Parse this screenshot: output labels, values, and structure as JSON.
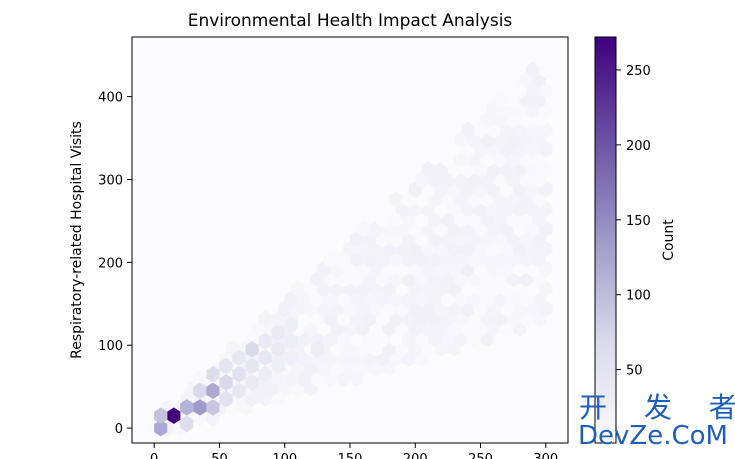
{
  "chart_data": {
    "type": "heatmap",
    "subtype": "hexbin",
    "title": "Environmental Health Impact Analysis",
    "xlabel": "",
    "ylabel": "Respiratory-related Hospital Visits",
    "colorbar_label": "Count",
    "colormap": "Purples",
    "xlim": [
      -17,
      317
    ],
    "ylim": [
      -18,
      472
    ],
    "xticks": [
      0,
      50,
      100,
      150,
      200,
      250,
      300
    ],
    "yticks": [
      0,
      100,
      200,
      300,
      400
    ],
    "colorbar_range": [
      1,
      272
    ],
    "colorbar_ticks": [
      50,
      100,
      150,
      200,
      250
    ],
    "max_count": 272,
    "hexbins": [
      {
        "x": 15,
        "y": 15,
        "count": 272
      },
      {
        "x": 5,
        "y": 0,
        "count": 120
      },
      {
        "x": 5,
        "y": 15,
        "count": 95
      },
      {
        "x": 25,
        "y": 25,
        "count": 110
      },
      {
        "x": 25,
        "y": 5,
        "count": 60
      },
      {
        "x": 35,
        "y": 25,
        "count": 135
      },
      {
        "x": 35,
        "y": 45,
        "count": 70
      },
      {
        "x": 45,
        "y": 45,
        "count": 120
      },
      {
        "x": 45,
        "y": 25,
        "count": 90
      },
      {
        "x": 45,
        "y": 65,
        "count": 60
      },
      {
        "x": 55,
        "y": 55,
        "count": 70
      },
      {
        "x": 55,
        "y": 35,
        "count": 55
      },
      {
        "x": 55,
        "y": 75,
        "count": 45
      },
      {
        "x": 65,
        "y": 65,
        "count": 55
      },
      {
        "x": 65,
        "y": 85,
        "count": 40
      },
      {
        "x": 65,
        "y": 45,
        "count": 40
      },
      {
        "x": 75,
        "y": 95,
        "count": 70
      },
      {
        "x": 75,
        "y": 75,
        "count": 45
      },
      {
        "x": 75,
        "y": 55,
        "count": 35
      },
      {
        "x": 85,
        "y": 85,
        "count": 40
      },
      {
        "x": 85,
        "y": 105,
        "count": 35
      },
      {
        "x": 85,
        "y": 65,
        "count": 30
      },
      {
        "x": 95,
        "y": 115,
        "count": 35
      },
      {
        "x": 95,
        "y": 95,
        "count": 35
      },
      {
        "x": 95,
        "y": 75,
        "count": 28
      },
      {
        "x": 105,
        "y": 105,
        "count": 30
      },
      {
        "x": 105,
        "y": 125,
        "count": 28
      },
      {
        "x": 105,
        "y": 85,
        "count": 25
      },
      {
        "x": 125,
        "y": 95,
        "count": 30
      }
    ]
  },
  "watermark": {
    "line1": "开 发 者",
    "line2": "DevZe.CoM"
  }
}
